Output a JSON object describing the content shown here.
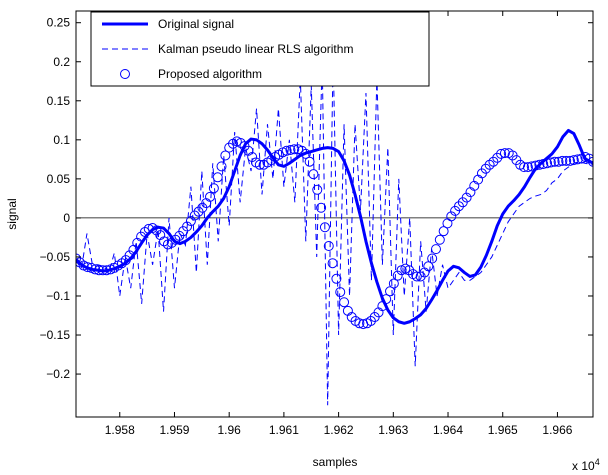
{
  "chart_data": {
    "type": "line",
    "title": "",
    "xlabel": "samples",
    "ylabel": "signal",
    "x_multiplier_label": "x 10",
    "x_multiplier_exponent": "4",
    "xlim": [
      1.9572,
      1.96665
    ],
    "ylim": [
      -0.255,
      0.265
    ],
    "x_ticks": [
      1.958,
      1.959,
      1.96,
      1.961,
      1.962,
      1.963,
      1.964,
      1.965,
      1.966
    ],
    "x_tick_labels": [
      "1.958",
      "1.959",
      "1.96",
      "1.961",
      "1.962",
      "1.963",
      "1.964",
      "1.965",
      "1.966"
    ],
    "y_ticks": [
      -0.2,
      -0.15,
      -0.1,
      -0.05,
      0,
      0.05,
      0.1,
      0.15,
      0.2,
      0.25
    ],
    "y_tick_labels": [
      "−0.2",
      "−0.15",
      "−0.1",
      "−0.05",
      "0",
      "0.05",
      "0.1",
      "0.15",
      "0.2",
      "0.25"
    ],
    "grid": false,
    "zero_line": true,
    "legend_position": "top-left",
    "colors": {
      "series": "#0000ff",
      "axes": "#000000",
      "zero_line": "#000000"
    },
    "series": [
      {
        "name": "Original signal",
        "style": "solid-thick",
        "x": [
          1.9572,
          1.9573,
          1.9574,
          1.9575,
          1.9576,
          1.9577,
          1.9578,
          1.9579,
          1.958,
          1.9581,
          1.9582,
          1.9583,
          1.9584,
          1.9585,
          1.9586,
          1.9587,
          1.9588,
          1.9589,
          1.959,
          1.9591,
          1.9592,
          1.9593,
          1.9594,
          1.9595,
          1.9596,
          1.9597,
          1.9598,
          1.9599,
          1.96,
          1.9601,
          1.9602,
          1.9603,
          1.9604,
          1.9605,
          1.9606,
          1.9607,
          1.9608,
          1.9609,
          1.961,
          1.9611,
          1.9612,
          1.9613,
          1.9614,
          1.9615,
          1.9616,
          1.9617,
          1.9618,
          1.9619,
          1.962,
          1.9621,
          1.9622,
          1.9623,
          1.9624,
          1.9625,
          1.9626,
          1.9627,
          1.9628,
          1.9629,
          1.963,
          1.9631,
          1.9632,
          1.9633,
          1.9634,
          1.9635,
          1.9636,
          1.9637,
          1.9638,
          1.9639,
          1.964,
          1.9641,
          1.9642,
          1.9643,
          1.9644,
          1.9645,
          1.9646,
          1.9647,
          1.9648,
          1.9649,
          1.965,
          1.9651,
          1.9652,
          1.9653,
          1.9654,
          1.9655,
          1.9656,
          1.9657,
          1.9658,
          1.9659,
          1.966,
          1.9661,
          1.9662,
          1.9663,
          1.9664,
          1.9665,
          1.96665
        ],
        "y": [
          -0.053,
          -0.06,
          -0.064,
          -0.066,
          -0.067,
          -0.068,
          -0.067,
          -0.065,
          -0.062,
          -0.058,
          -0.052,
          -0.043,
          -0.032,
          -0.022,
          -0.015,
          -0.012,
          -0.013,
          -0.02,
          -0.03,
          -0.033,
          -0.03,
          -0.025,
          -0.018,
          -0.01,
          0.0,
          0.008,
          0.015,
          0.025,
          0.04,
          0.06,
          0.08,
          0.095,
          0.101,
          0.1,
          0.095,
          0.087,
          0.077,
          0.068,
          0.066,
          0.07,
          0.075,
          0.08,
          0.083,
          0.085,
          0.087,
          0.089,
          0.09,
          0.089,
          0.085,
          0.073,
          0.055,
          0.03,
          0.002,
          -0.03,
          -0.058,
          -0.082,
          -0.103,
          -0.118,
          -0.128,
          -0.133,
          -0.135,
          -0.133,
          -0.129,
          -0.124,
          -0.116,
          -0.105,
          -0.093,
          -0.08,
          -0.068,
          -0.062,
          -0.064,
          -0.07,
          -0.075,
          -0.073,
          -0.063,
          -0.048,
          -0.03,
          -0.01,
          0.005,
          0.015,
          0.022,
          0.03,
          0.04,
          0.052,
          0.063,
          0.07,
          0.076,
          0.082,
          0.091,
          0.104,
          0.112,
          0.108,
          0.093,
          0.076,
          0.07
        ]
      },
      {
        "name": "Kalman pseudo linear RLS algorithm",
        "style": "dashed-thin",
        "x": [
          1.9572,
          1.9573,
          1.9574,
          1.9575,
          1.9576,
          1.9577,
          1.9578,
          1.9579,
          1.958,
          1.9581,
          1.9582,
          1.9583,
          1.9584,
          1.9585,
          1.9586,
          1.9587,
          1.9588,
          1.9589,
          1.959,
          1.9591,
          1.9592,
          1.9593,
          1.9594,
          1.9595,
          1.9596,
          1.9597,
          1.9598,
          1.9599,
          1.96,
          1.9601,
          1.9602,
          1.9603,
          1.9604,
          1.9605,
          1.9606,
          1.9607,
          1.9608,
          1.9609,
          1.961,
          1.9611,
          1.9612,
          1.9613,
          1.9614,
          1.9615,
          1.9616,
          1.9617,
          1.9618,
          1.9619,
          1.962,
          1.9621,
          1.9622,
          1.9623,
          1.9624,
          1.9625,
          1.9626,
          1.9627,
          1.9628,
          1.9629,
          1.963,
          1.9631,
          1.9632,
          1.9633,
          1.9634,
          1.9635,
          1.9636,
          1.9637,
          1.9638,
          1.9639,
          1.964,
          1.9641,
          1.9642,
          1.9643,
          1.9644,
          1.9645,
          1.9646,
          1.9647,
          1.9648,
          1.9649,
          1.965,
          1.9651,
          1.9652,
          1.9653,
          1.9654,
          1.9655,
          1.9656,
          1.9657,
          1.9658,
          1.9659,
          1.966,
          1.9661,
          1.9662,
          1.9663,
          1.9664,
          1.9665,
          1.96665
        ],
        "y": [
          -0.055,
          -0.065,
          -0.02,
          -0.06,
          -0.06,
          -0.062,
          -0.07,
          -0.045,
          -0.1,
          -0.05,
          -0.09,
          -0.03,
          -0.11,
          -0.02,
          -0.06,
          -0.015,
          -0.12,
          0.0,
          -0.09,
          -0.02,
          -0.035,
          0.04,
          -0.07,
          0.06,
          -0.06,
          0.07,
          -0.03,
          0.08,
          -0.01,
          0.11,
          0.02,
          0.09,
          0.06,
          0.14,
          0.03,
          0.12,
          0.05,
          0.14,
          0.04,
          0.1,
          0.02,
          0.18,
          -0.03,
          0.17,
          -0.05,
          0.2,
          -0.24,
          0.21,
          -0.15,
          0.12,
          -0.1,
          0.12,
          0.01,
          0.16,
          -0.08,
          0.18,
          -0.06,
          0.09,
          -0.15,
          0.05,
          -0.1,
          0.0,
          -0.19,
          -0.03,
          -0.12,
          -0.04,
          -0.1,
          -0.06,
          -0.09,
          -0.08,
          -0.07,
          -0.08,
          -0.08,
          -0.075,
          -0.07,
          -0.06,
          -0.05,
          -0.035,
          -0.02,
          -0.005,
          0.005,
          0.015,
          0.02,
          0.025,
          0.028,
          0.03,
          0.035,
          0.045,
          0.05,
          0.06,
          0.065,
          0.07,
          0.072,
          0.07,
          0.068
        ]
      },
      {
        "name": "Proposed algorithm",
        "style": "circle-markers",
        "x": [
          1.9572,
          1.95727,
          1.95734,
          1.95741,
          1.95748,
          1.95755,
          1.95762,
          1.95769,
          1.95776,
          1.95783,
          1.9579,
          1.95797,
          1.95804,
          1.95811,
          1.95818,
          1.95825,
          1.95832,
          1.95839,
          1.95846,
          1.95853,
          1.9586,
          1.95867,
          1.95874,
          1.95881,
          1.95888,
          1.95895,
          1.95902,
          1.95909,
          1.95916,
          1.95923,
          1.9593,
          1.95937,
          1.95944,
          1.95951,
          1.95958,
          1.95965,
          1.95972,
          1.95979,
          1.95986,
          1.95993,
          1.96,
          1.96007,
          1.96014,
          1.96021,
          1.96028,
          1.96035,
          1.96042,
          1.96049,
          1.96056,
          1.96063,
          1.9607,
          1.96077,
          1.96084,
          1.96091,
          1.96098,
          1.96105,
          1.96112,
          1.96119,
          1.96126,
          1.96133,
          1.9614,
          1.96147,
          1.96154,
          1.96161,
          1.96168,
          1.96175,
          1.96182,
          1.96189,
          1.96196,
          1.96203,
          1.9621,
          1.96217,
          1.96224,
          1.96231,
          1.96238,
          1.96245,
          1.96252,
          1.96259,
          1.96266,
          1.96273,
          1.9628,
          1.96287,
          1.96294,
          1.96301,
          1.96308,
          1.96315,
          1.96322,
          1.96329,
          1.96336,
          1.96343,
          1.9635,
          1.96357,
          1.96364,
          1.96371,
          1.96378,
          1.96385,
          1.96392,
          1.96399,
          1.96406,
          1.96413,
          1.9642,
          1.96427,
          1.96434,
          1.96441,
          1.96448,
          1.96455,
          1.96462,
          1.96469,
          1.96476,
          1.96483,
          1.9649,
          1.96497,
          1.96504,
          1.96511,
          1.96518,
          1.96525,
          1.96532,
          1.96539,
          1.96546,
          1.96553,
          1.9656,
          1.96567,
          1.96574,
          1.96581,
          1.96588,
          1.96595,
          1.96602,
          1.96609,
          1.96616,
          1.96623,
          1.9663,
          1.96637,
          1.96644,
          1.96651,
          1.96658,
          1.96665
        ],
        "y": [
          -0.052,
          -0.057,
          -0.061,
          -0.063,
          -0.064,
          -0.066,
          -0.067,
          -0.067,
          -0.067,
          -0.066,
          -0.064,
          -0.061,
          -0.058,
          -0.054,
          -0.048,
          -0.041,
          -0.032,
          -0.024,
          -0.018,
          -0.014,
          -0.013,
          -0.016,
          -0.022,
          -0.03,
          -0.034,
          -0.032,
          -0.028,
          -0.023,
          -0.017,
          -0.011,
          -0.004,
          0.003,
          0.008,
          0.013,
          0.019,
          0.027,
          0.038,
          0.052,
          0.066,
          0.08,
          0.09,
          0.095,
          0.098,
          0.096,
          0.092,
          0.086,
          0.078,
          0.071,
          0.068,
          0.068,
          0.071,
          0.074,
          0.078,
          0.081,
          0.084,
          0.086,
          0.087,
          0.088,
          0.088,
          0.086,
          0.082,
          0.072,
          0.056,
          0.036,
          0.013,
          -0.012,
          -0.036,
          -0.058,
          -0.078,
          -0.095,
          -0.108,
          -0.119,
          -0.127,
          -0.132,
          -0.135,
          -0.136,
          -0.135,
          -0.132,
          -0.127,
          -0.121,
          -0.113,
          -0.104,
          -0.094,
          -0.084,
          -0.074,
          -0.067,
          -0.065,
          -0.067,
          -0.072,
          -0.075,
          -0.075,
          -0.07,
          -0.062,
          -0.052,
          -0.04,
          -0.028,
          -0.017,
          -0.007,
          0.002,
          0.009,
          0.015,
          0.02,
          0.026,
          0.033,
          0.041,
          0.049,
          0.057,
          0.063,
          0.068,
          0.072,
          0.077,
          0.082,
          0.083,
          0.083,
          0.08,
          0.074,
          0.068,
          0.065,
          0.065,
          0.066,
          0.067,
          0.068,
          0.069,
          0.07,
          0.071,
          0.072,
          0.072,
          0.073,
          0.073,
          0.073,
          0.074,
          0.075,
          0.076,
          0.078,
          0.076,
          0.072
        ]
      }
    ]
  }
}
